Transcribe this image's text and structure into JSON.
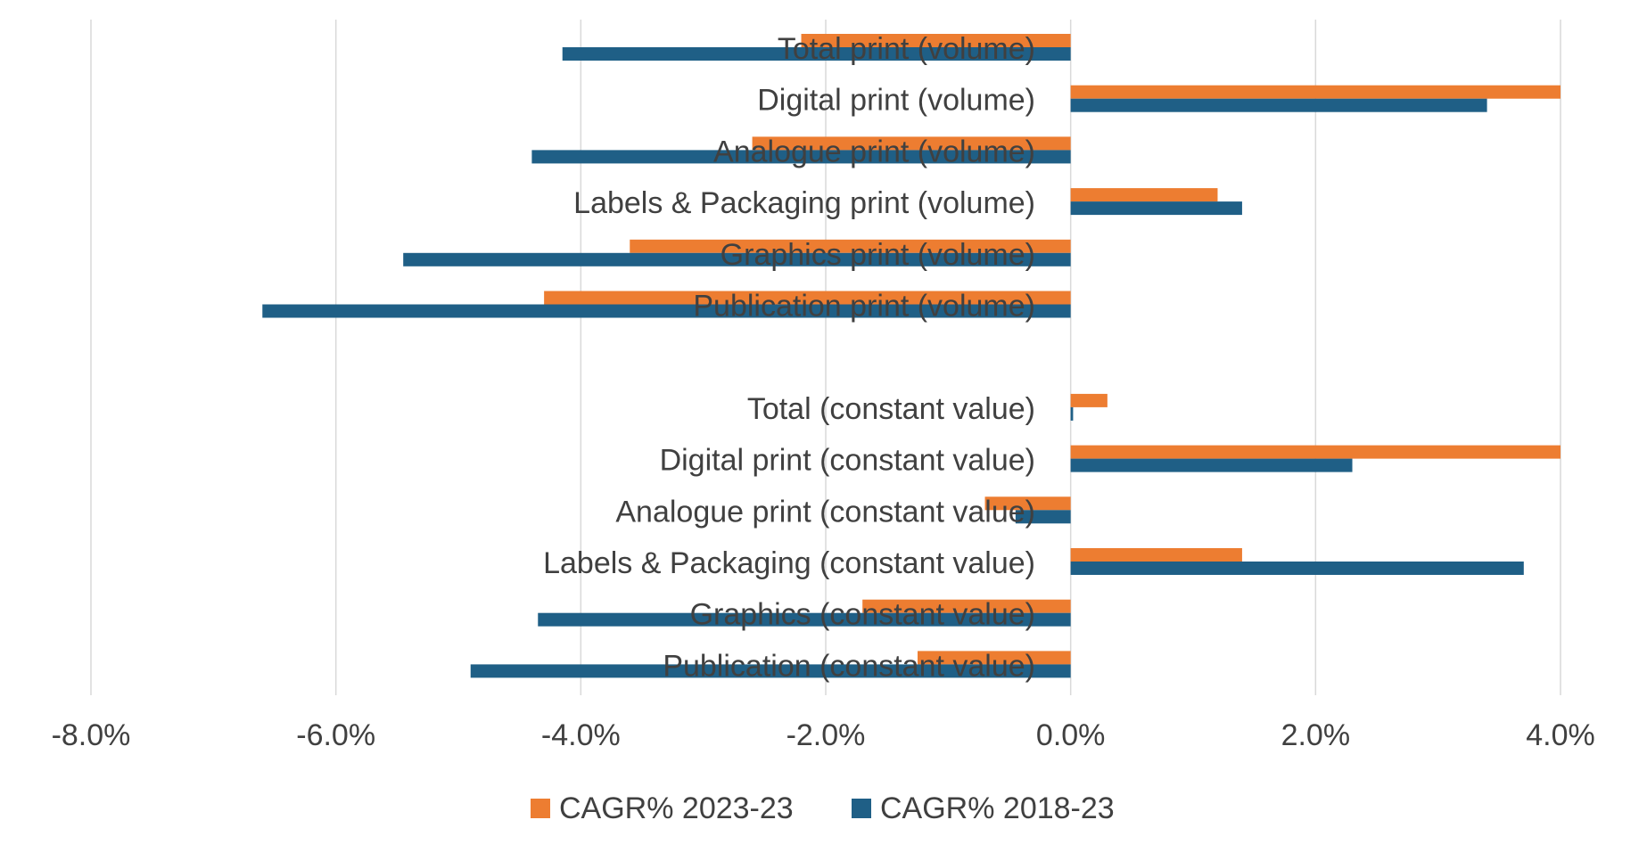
{
  "chart_data": {
    "type": "bar",
    "orientation": "horizontal",
    "title": "",
    "xlabel": "",
    "ylabel": "",
    "xlim": [
      -8,
      4
    ],
    "x_ticks": [
      -8,
      -6,
      -4,
      -2,
      0,
      2,
      4
    ],
    "x_tick_labels": [
      "-8.0%",
      "-6.0%",
      "-4.0%",
      "-2.0%",
      "0.0%",
      "2.0%",
      "4.0%"
    ],
    "grid": true,
    "legend_position": "bottom",
    "categories": [
      "Total print (volume)",
      "Digital print (volume)",
      "Analogue print (volume)",
      "Labels & Packaging print (volume)",
      "Graphics print (volume)",
      "Publication print (volume)",
      "",
      "Total (constant value)",
      "Digital print (constant value)",
      "Analogue print (constant value)",
      "Labels & Packaging (constant value)",
      "Graphics (constant value)",
      "Publication (constant value)"
    ],
    "series": [
      {
        "name": "CAGR% 2023-23",
        "color": "#ED7D31",
        "values": [
          -2.2,
          4.0,
          -2.6,
          1.2,
          -3.6,
          -4.3,
          null,
          0.3,
          4.0,
          -0.7,
          1.4,
          -1.7,
          -1.25
        ]
      },
      {
        "name": "CAGR% 2018-23",
        "color": "#1F5F86",
        "values": [
          -4.15,
          3.4,
          -4.4,
          1.4,
          -5.45,
          -6.6,
          null,
          0.02,
          2.3,
          -0.45,
          3.7,
          -4.35,
          -4.9
        ]
      }
    ]
  }
}
